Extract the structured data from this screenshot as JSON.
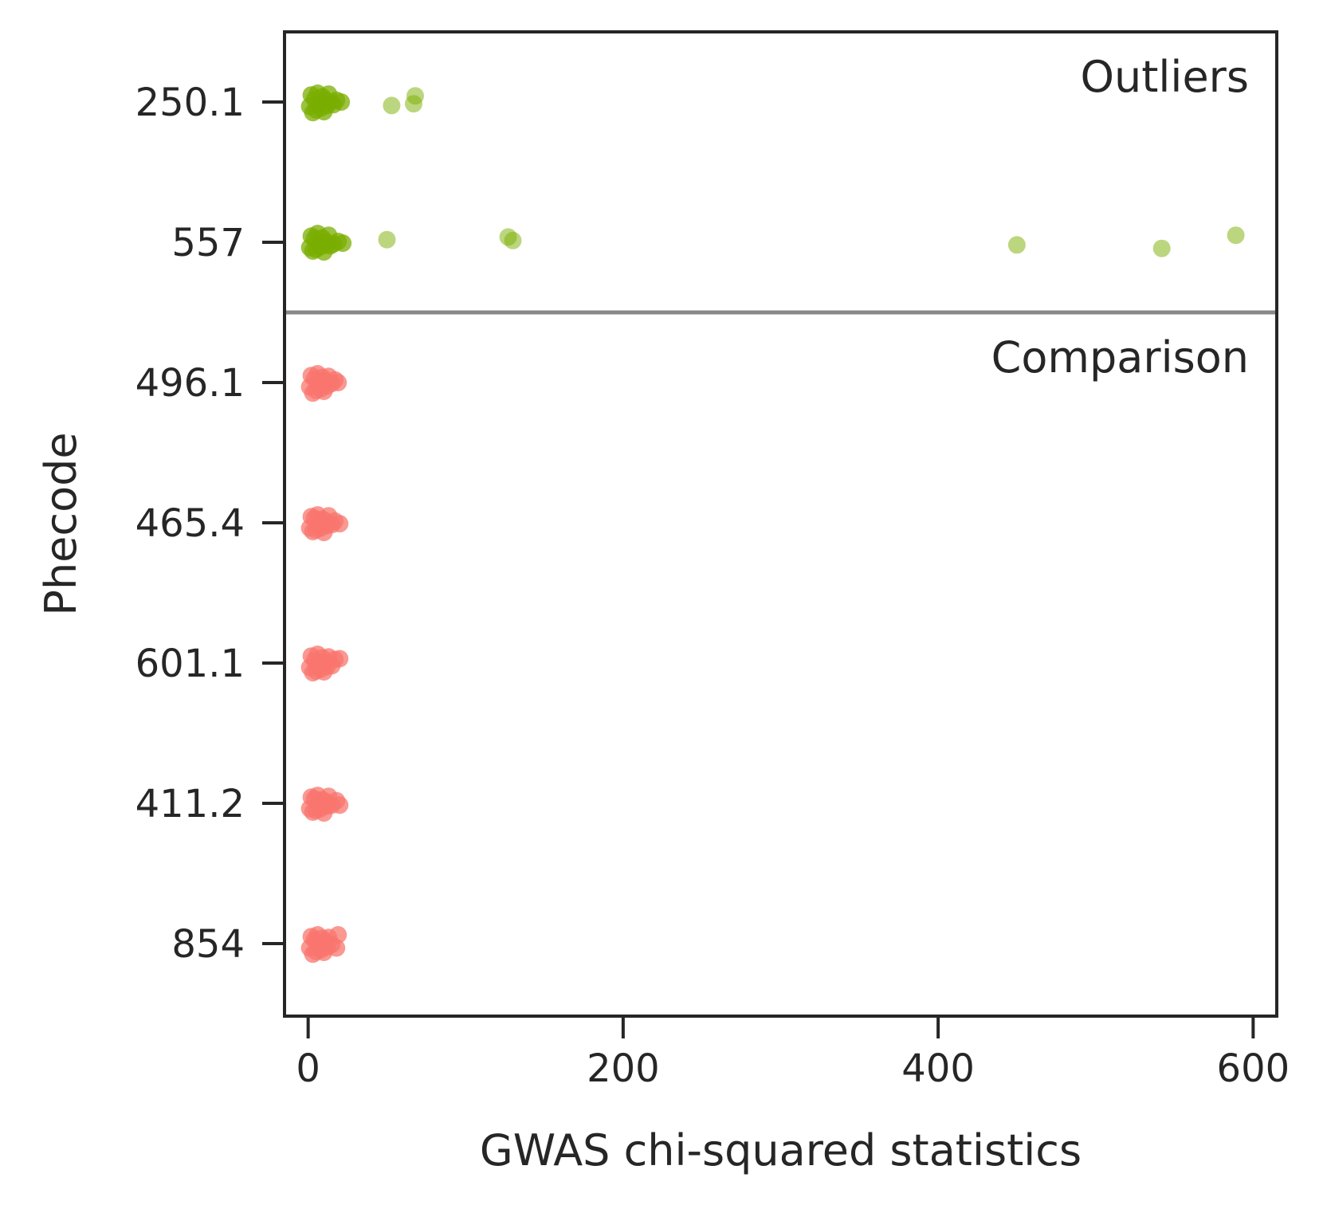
{
  "chart_data": {
    "type": "scatter",
    "xlabel": "GWAS chi-squared statistics",
    "ylabel": "Phecode",
    "xlim": [
      -15,
      615
    ],
    "xticks": [
      0,
      200,
      400,
      600
    ],
    "xtick_labels": [
      "0",
      "200",
      "400",
      "600"
    ],
    "categories": [
      "250.1",
      "557",
      "496.1",
      "465.4",
      "601.1",
      "411.2",
      "854"
    ],
    "group_labels": {
      "outliers": "Outliers",
      "comparison": "Comparison"
    },
    "colors": {
      "outliers": "#7aad00",
      "comparison": "#f8766d",
      "divider": "#888888",
      "axis": "#262626"
    },
    "series": [
      {
        "category": "250.1",
        "group": "outliers",
        "points": [
          [
            1,
            0.05
          ],
          [
            2,
            -0.08
          ],
          [
            3,
            0.12
          ],
          [
            4,
            -0.03
          ],
          [
            5,
            0.09
          ],
          [
            6,
            -0.1
          ],
          [
            7,
            0.02
          ],
          [
            8,
            0.07
          ],
          [
            9,
            -0.06
          ],
          [
            10,
            0.11
          ],
          [
            11,
            -0.02
          ],
          [
            12,
            0.04
          ],
          [
            13,
            -0.09
          ],
          [
            14,
            0.0
          ],
          [
            16,
            0.03
          ],
          [
            18,
            -0.02
          ],
          [
            21,
            0.0
          ],
          [
            53,
            0.04
          ],
          [
            67,
            0.02
          ],
          [
            68,
            -0.07
          ]
        ]
      },
      {
        "category": "557",
        "group": "outliers",
        "points": [
          [
            1,
            0.06
          ],
          [
            2,
            -0.07
          ],
          [
            3,
            0.1
          ],
          [
            4,
            -0.04
          ],
          [
            5,
            0.08
          ],
          [
            6,
            -0.1
          ],
          [
            7,
            0.03
          ],
          [
            8,
            0.05
          ],
          [
            9,
            -0.05
          ],
          [
            10,
            0.11
          ],
          [
            11,
            -0.01
          ],
          [
            12,
            0.02
          ],
          [
            13,
            -0.08
          ],
          [
            14,
            0.04
          ],
          [
            16,
            0.02
          ],
          [
            19,
            -0.01
          ],
          [
            22,
            0.01
          ],
          [
            50,
            -0.03
          ],
          [
            127,
            -0.06
          ],
          [
            130,
            -0.02
          ],
          [
            450,
            0.03
          ],
          [
            542,
            0.07
          ],
          [
            589,
            -0.08
          ]
        ]
      },
      {
        "category": "496.1",
        "group": "comparison",
        "points": [
          [
            1,
            0.05
          ],
          [
            2,
            -0.08
          ],
          [
            3,
            0.12
          ],
          [
            4,
            -0.04
          ],
          [
            5,
            0.09
          ],
          [
            6,
            -0.1
          ],
          [
            7,
            0.02
          ],
          [
            8,
            0.07
          ],
          [
            9,
            -0.06
          ],
          [
            10,
            0.1
          ],
          [
            11,
            -0.02
          ],
          [
            12,
            0.04
          ],
          [
            13,
            -0.07
          ],
          [
            15,
            0.01
          ],
          [
            17,
            -0.03
          ],
          [
            19,
            0.0
          ]
        ]
      },
      {
        "category": "465.4",
        "group": "comparison",
        "points": [
          [
            1,
            0.06
          ],
          [
            2,
            -0.07
          ],
          [
            3,
            0.1
          ],
          [
            4,
            -0.05
          ],
          [
            5,
            0.08
          ],
          [
            6,
            -0.09
          ],
          [
            7,
            0.03
          ],
          [
            8,
            0.06
          ],
          [
            9,
            -0.04
          ],
          [
            10,
            0.11
          ],
          [
            11,
            -0.02
          ],
          [
            12,
            0.03
          ],
          [
            13,
            -0.08
          ],
          [
            15,
            0.02
          ],
          [
            17,
            -0.02
          ],
          [
            20,
            0.01
          ]
        ]
      },
      {
        "category": "601.1",
        "group": "comparison",
        "points": [
          [
            1,
            0.05
          ],
          [
            2,
            -0.08
          ],
          [
            3,
            0.11
          ],
          [
            4,
            -0.03
          ],
          [
            5,
            0.09
          ],
          [
            6,
            -0.1
          ],
          [
            7,
            0.02
          ],
          [
            8,
            0.07
          ],
          [
            9,
            -0.06
          ],
          [
            10,
            0.1
          ],
          [
            11,
            -0.01
          ],
          [
            12,
            0.04
          ],
          [
            13,
            -0.07
          ],
          [
            15,
            0.03
          ],
          [
            17,
            -0.04
          ],
          [
            20,
            -0.05
          ]
        ]
      },
      {
        "category": "411.2",
        "group": "comparison",
        "points": [
          [
            1,
            0.06
          ],
          [
            2,
            -0.07
          ],
          [
            3,
            0.1
          ],
          [
            4,
            -0.05
          ],
          [
            5,
            0.08
          ],
          [
            6,
            -0.09
          ],
          [
            7,
            0.03
          ],
          [
            8,
            0.06
          ],
          [
            9,
            -0.04
          ],
          [
            10,
            0.11
          ],
          [
            11,
            -0.02
          ],
          [
            12,
            0.03
          ],
          [
            13,
            -0.08
          ],
          [
            15,
            0.02
          ],
          [
            18,
            -0.03
          ],
          [
            20,
            0.02
          ]
        ]
      },
      {
        "category": "854",
        "group": "comparison",
        "points": [
          [
            1,
            0.05
          ],
          [
            2,
            -0.08
          ],
          [
            3,
            0.12
          ],
          [
            4,
            -0.04
          ],
          [
            5,
            0.09
          ],
          [
            6,
            -0.1
          ],
          [
            7,
            0.02
          ],
          [
            8,
            0.07
          ],
          [
            9,
            -0.06
          ],
          [
            10,
            0.1
          ],
          [
            11,
            -0.02
          ],
          [
            12,
            0.04
          ],
          [
            13,
            -0.07
          ],
          [
            15,
            0.01
          ],
          [
            18,
            0.05
          ],
          [
            19,
            -0.1
          ]
        ]
      }
    ]
  }
}
